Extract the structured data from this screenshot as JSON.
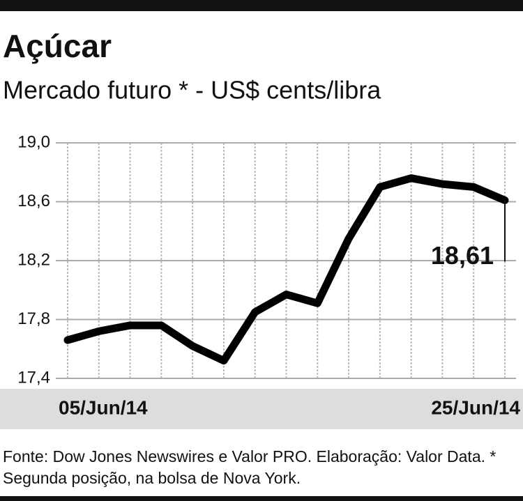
{
  "chart_data": {
    "type": "line",
    "title": "Açúcar",
    "subtitle": "Mercado futuro * - US$ cents/libra",
    "categories": [
      "05/Jun/14",
      null,
      null,
      null,
      null,
      null,
      null,
      null,
      null,
      null,
      null,
      null,
      null,
      null,
      "25/Jun/14"
    ],
    "values": [
      17.66,
      17.72,
      17.76,
      17.76,
      17.62,
      17.52,
      17.85,
      17.97,
      17.91,
      18.35,
      18.7,
      18.76,
      18.72,
      18.7,
      18.61
    ],
    "value_labels": [
      null,
      null,
      null,
      null,
      null,
      null,
      null,
      null,
      null,
      null,
      null,
      null,
      null,
      null,
      "18,61"
    ],
    "color": "#000000",
    "ylim": [
      17.4,
      19.0
    ],
    "yticks": [
      {
        "value": 17.4,
        "label": "17,4"
      },
      {
        "value": 17.8,
        "label": "17,8"
      },
      {
        "value": 18.2,
        "label": "18,2"
      },
      {
        "value": 18.6,
        "label": "18,6"
      },
      {
        "value": 19.0,
        "label": "19,0"
      }
    ],
    "grid": true,
    "source": "Fonte: Dow Jones Newswires e Valor PRO. Elaboração: Valor Data. * Segunda posição, na bolsa de Nova York."
  }
}
